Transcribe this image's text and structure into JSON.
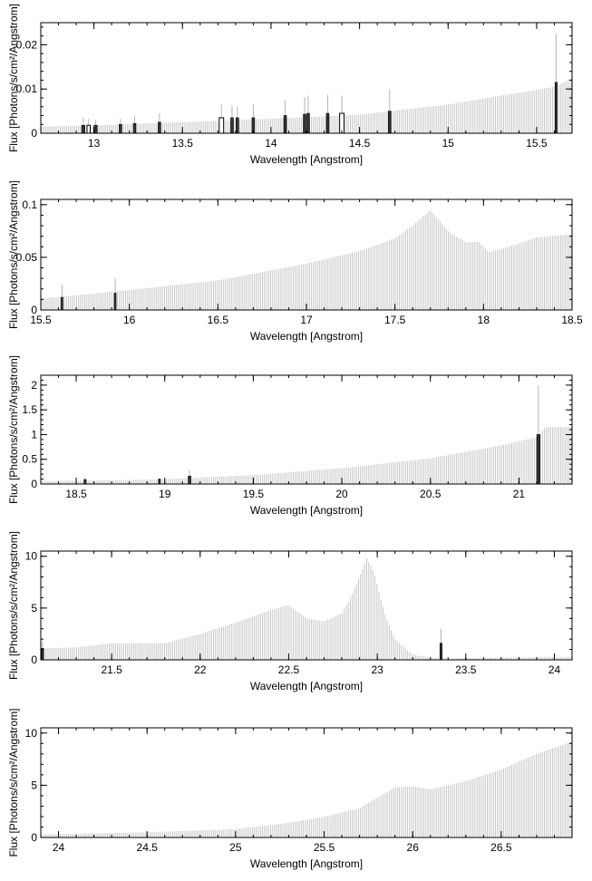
{
  "colors": {
    "spectrum": "#c6c6c6",
    "feature": "#333333",
    "axes": "#000000"
  },
  "chart_data": [
    {
      "type": "bar",
      "xlabel": "Wavelength [Angstrom]",
      "ylabel": "Flux [Photons/s/cm²/Angstrom]",
      "xlim": [
        12.7,
        15.7
      ],
      "ylim": [
        0,
        0.025
      ],
      "xticks": [
        13,
        13.5,
        14,
        14.5,
        15,
        15.5
      ],
      "xtick_labels": [
        "13",
        "13.5",
        "14",
        "14.5",
        "15",
        "15.5"
      ],
      "yticks": [
        0,
        0.01,
        0.02
      ],
      "ytick_labels": [
        "0",
        "0.01",
        "0.02"
      ],
      "grid": false,
      "continuum": {
        "x": [
          12.7,
          13.0,
          13.5,
          14.0,
          14.5,
          15.0,
          15.3,
          15.6,
          15.7
        ],
        "y": [
          0.0015,
          0.0018,
          0.0025,
          0.0033,
          0.0042,
          0.0065,
          0.0085,
          0.0105,
          0.0125
        ]
      },
      "features": [
        {
          "x": 12.94,
          "y": 0.0018,
          "err": 0.0035,
          "w": 0.018
        },
        {
          "x": 12.97,
          "y": 0.0018,
          "err": 0.0033,
          "w": 0.018,
          "open": true
        },
        {
          "x": 13.01,
          "y": 0.0018,
          "err": 0.003,
          "w": 0.018
        },
        {
          "x": 13.15,
          "y": 0.002,
          "err": 0.0032,
          "w": 0.015
        },
        {
          "x": 13.23,
          "y": 0.0022,
          "err": 0.004,
          "w": 0.015
        },
        {
          "x": 13.37,
          "y": 0.0025,
          "err": 0.0045,
          "w": 0.015
        },
        {
          "x": 13.72,
          "y": 0.0035,
          "err": 0.0065,
          "w": 0.025,
          "open": true
        },
        {
          "x": 13.78,
          "y": 0.0035,
          "err": 0.0062,
          "w": 0.015
        },
        {
          "x": 13.81,
          "y": 0.0035,
          "err": 0.006,
          "w": 0.015
        },
        {
          "x": 13.9,
          "y": 0.0035,
          "err": 0.0065,
          "w": 0.015
        },
        {
          "x": 14.08,
          "y": 0.004,
          "err": 0.0075,
          "w": 0.015
        },
        {
          "x": 14.19,
          "y": 0.0043,
          "err": 0.0082,
          "w": 0.015
        },
        {
          "x": 14.21,
          "y": 0.0045,
          "err": 0.0085,
          "w": 0.015
        },
        {
          "x": 14.32,
          "y": 0.0045,
          "err": 0.0087,
          "w": 0.015
        },
        {
          "x": 14.4,
          "y": 0.0045,
          "err": 0.0085,
          "w": 0.025,
          "open": true
        },
        {
          "x": 14.67,
          "y": 0.005,
          "err": 0.01,
          "w": 0.015
        },
        {
          "x": 15.61,
          "y": 0.0115,
          "err": 0.0225,
          "w": 0.012
        }
      ]
    },
    {
      "type": "bar",
      "xlabel": "Wavelength [Angstrom]",
      "ylabel": "Flux [Photons/s/cm²/Angstrom]",
      "xlim": [
        15.5,
        18.5
      ],
      "ylim": [
        0,
        0.105
      ],
      "xticks": [
        15.5,
        16,
        16.5,
        17,
        17.5,
        18,
        18.5
      ],
      "xtick_labels": [
        "15.5",
        "16",
        "16.5",
        "17",
        "17.5",
        "18",
        "18.5"
      ],
      "yticks": [
        0,
        0.05,
        0.1
      ],
      "ytick_labels": [
        "0",
        "0.05",
        "0.1"
      ],
      "grid": false,
      "continuum": {
        "x": [
          15.5,
          15.7,
          16.0,
          16.5,
          17.0,
          17.3,
          17.5,
          17.6,
          17.7,
          17.8,
          17.9,
          17.97,
          18.03,
          18.1,
          18.2,
          18.3,
          18.5
        ],
        "y": [
          0.011,
          0.014,
          0.019,
          0.028,
          0.044,
          0.056,
          0.068,
          0.08,
          0.095,
          0.075,
          0.064,
          0.065,
          0.055,
          0.058,
          0.063,
          0.069,
          0.072
        ]
      },
      "features": [
        {
          "x": 15.62,
          "y": 0.012,
          "err": 0.024,
          "w": 0.01
        },
        {
          "x": 15.92,
          "y": 0.016,
          "err": 0.03,
          "w": 0.01
        }
      ]
    },
    {
      "type": "bar",
      "xlabel": "Wavelength [Angstrom]",
      "ylabel": "Flux [Photons/s/cm²/Angstrom]",
      "xlim": [
        18.3,
        21.3
      ],
      "ylim": [
        0,
        2.2
      ],
      "xticks": [
        18.5,
        19,
        19.5,
        20,
        20.5,
        21
      ],
      "xtick_labels": [
        "18.5",
        "19",
        "19.5",
        "20",
        "20.5",
        "21"
      ],
      "yticks": [
        0,
        0.5,
        1,
        1.5,
        2
      ],
      "ytick_labels": [
        "0",
        "0.5",
        "1",
        "1.5",
        "2"
      ],
      "grid": false,
      "continuum": {
        "x": [
          18.3,
          18.8,
          19.0,
          19.5,
          20.0,
          20.5,
          20.9,
          21.1,
          21.15,
          21.3
        ],
        "y": [
          0.06,
          0.08,
          0.1,
          0.18,
          0.32,
          0.52,
          0.78,
          0.95,
          1.15,
          1.15
        ]
      },
      "features": [
        {
          "x": 18.55,
          "y": 0.09,
          "err": 0.14,
          "w": 0.012
        },
        {
          "x": 18.97,
          "y": 0.1,
          "err": 0.12,
          "w": 0.01
        },
        {
          "x": 19.14,
          "y": 0.16,
          "err": 0.28,
          "w": 0.015
        },
        {
          "x": 21.11,
          "y": 1.0,
          "err": 2.0,
          "w": 0.018
        }
      ]
    },
    {
      "type": "bar",
      "xlabel": "Wavelength [Angstrom]",
      "ylabel": "Flux [Photons/s/cm²/Angstrom]",
      "xlim": [
        21.1,
        24.1
      ],
      "ylim": [
        0,
        10.5
      ],
      "xticks": [
        21.5,
        22,
        22.5,
        23,
        23.5,
        24
      ],
      "xtick_labels": [
        "21.5",
        "22",
        "22.5",
        "23",
        "23.5",
        "24"
      ],
      "yticks": [
        0,
        5,
        10
      ],
      "ytick_labels": [
        "0",
        "5",
        "10"
      ],
      "grid": false,
      "continuum": {
        "x": [
          21.1,
          21.3,
          21.5,
          21.8,
          22.0,
          22.2,
          22.4,
          22.5,
          22.6,
          22.7,
          22.8,
          22.85,
          22.9,
          22.94,
          22.98,
          23.05,
          23.1,
          23.2,
          23.3,
          23.35,
          23.4,
          23.6,
          24.1
        ],
        "y": [
          1.1,
          1.2,
          1.6,
          1.6,
          2.5,
          3.6,
          4.8,
          5.3,
          4.0,
          3.7,
          4.5,
          6.0,
          8.0,
          9.8,
          8.5,
          4.0,
          2.0,
          0.5,
          0.2,
          0.2,
          0.15,
          0.2,
          0.3
        ]
      },
      "features": [
        {
          "x": 21.11,
          "y": 1.1,
          "err": 1.8,
          "w": 0.012
        },
        {
          "x": 23.36,
          "y": 1.6,
          "err": 3.0,
          "w": 0.012
        }
      ]
    },
    {
      "type": "bar",
      "xlabel": "Wavelength [Angstrom]",
      "ylabel": "Flux [Photons/s/cm²/Angstrom]",
      "xlim": [
        23.9,
        26.9
      ],
      "ylim": [
        0,
        10.5
      ],
      "xticks": [
        24,
        24.5,
        25,
        25.5,
        26,
        26.5
      ],
      "xtick_labels": [
        "24",
        "24.5",
        "25",
        "25.5",
        "26",
        "26.5"
      ],
      "yticks": [
        0,
        5,
        10
      ],
      "ytick_labels": [
        "0",
        "5",
        "10"
      ],
      "grid": false,
      "continuum": {
        "x": [
          23.9,
          24.5,
          25.0,
          25.3,
          25.5,
          25.7,
          25.8,
          25.9,
          26.0,
          26.1,
          26.3,
          26.5,
          26.7,
          26.9
        ],
        "y": [
          0.3,
          0.5,
          0.8,
          1.4,
          2.0,
          2.8,
          3.8,
          4.8,
          4.9,
          4.6,
          5.4,
          6.5,
          8.0,
          9.2
        ]
      },
      "features": []
    }
  ]
}
